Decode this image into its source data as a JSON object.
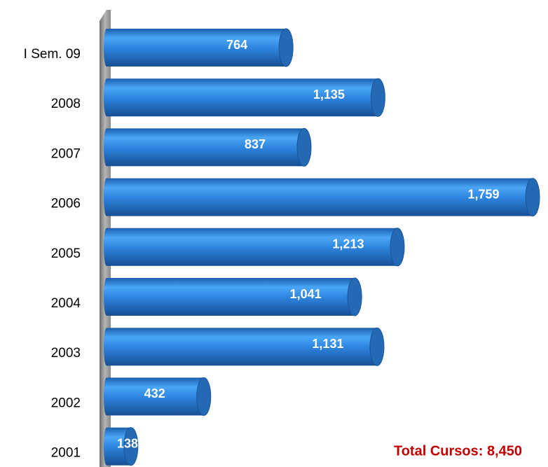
{
  "chart_data": {
    "type": "bar",
    "orientation": "horizontal",
    "categories": [
      "I Sem. 09",
      "2008",
      "2007",
      "2006",
      "2005",
      "2004",
      "2003",
      "2002",
      "2001"
    ],
    "values": [
      764,
      1135,
      837,
      1759,
      1213,
      1041,
      1131,
      432,
      138
    ],
    "value_labels": [
      "764",
      "1,135",
      "837",
      "1,759",
      "1,213",
      "1,041",
      "1,131",
      "432",
      "138"
    ],
    "color": "#2f86e0",
    "xlim": [
      0,
      1790
    ],
    "annotation": "Total Cursos: 8,450"
  }
}
